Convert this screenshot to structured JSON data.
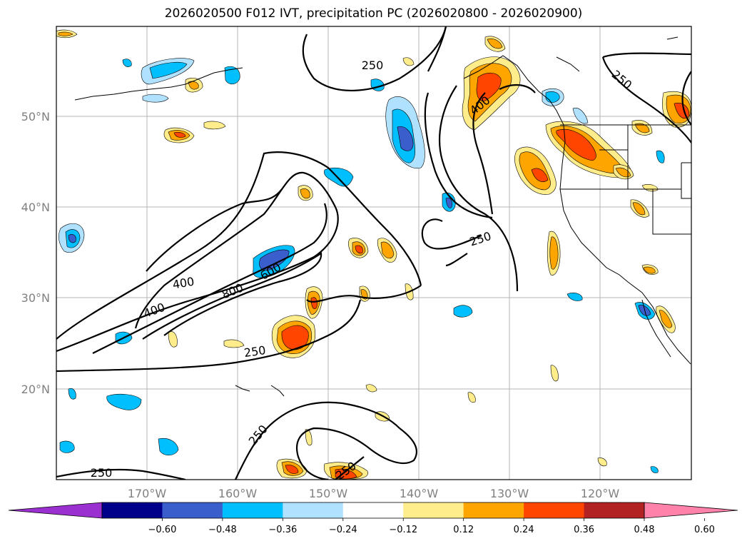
{
  "title": "2026020500 F012 IVT, precipitation PC (2026020800 - 2026020900)",
  "lat_labels": [
    "50°N",
    "40°N",
    "30°N",
    "20°N"
  ],
  "lon_labels": [
    "170°W",
    "160°W",
    "150°W",
    "140°W",
    "130°W",
    "120°W"
  ],
  "colorbar": {
    "ticks": [
      "−0.60",
      "−0.48",
      "−0.36",
      "−0.24",
      "−0.12",
      "0.12",
      "0.24",
      "0.36",
      "0.48",
      "0.60"
    ],
    "colors": [
      "#9b30d0",
      "#00008b",
      "#3a5fcd",
      "#00bfff",
      "#b0e2ff",
      "#ffffff",
      "#ffec8b",
      "#ffa500",
      "#ff4500",
      "#b22222",
      "#ff82ab"
    ]
  },
  "contour_labels": {
    "c250_a": "250",
    "c250_b": "250",
    "c250_c": "250",
    "c250_d": "250",
    "c250_e": "250",
    "c250_f": "250",
    "c250_g": "250",
    "c400_a": "400",
    "c400_b": "400",
    "c400_c": "400",
    "c800": "800",
    "c600": "600"
  }
}
